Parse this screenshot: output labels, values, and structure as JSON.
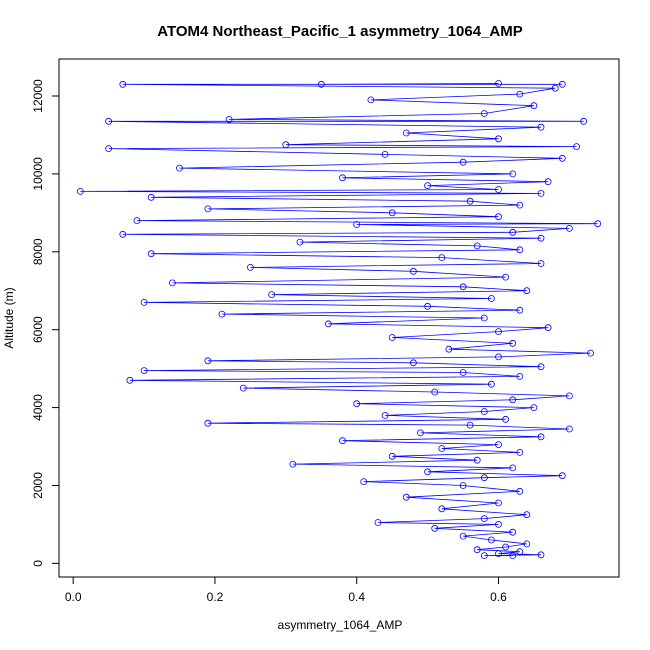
{
  "chart_data": {
    "type": "scatter",
    "title": "ATOM4 Northeast_Pacific_1 asymmetry_1064_AMP",
    "xlabel": "asymmetry_1064_AMP",
    "ylabel": "Altitude (m)",
    "xlim": [
      -0.02,
      0.77
    ],
    "ylim": [
      -350,
      12950
    ],
    "xticks": [
      "0.0",
      "0.2",
      "0.4",
      "0.6"
    ],
    "yticks": [
      "0",
      "2000",
      "4000",
      "6000",
      "8000",
      "10000",
      "12000"
    ],
    "grid": false,
    "style": "points connected by lines (open circles)",
    "color": "#0000ff",
    "series": [
      {
        "values_note": "",
        "points": [
          [
            0.62,
            200
          ],
          [
            0.58,
            200
          ],
          [
            0.66,
            220
          ],
          [
            0.6,
            250
          ],
          [
            0.63,
            300
          ],
          [
            0.57,
            350
          ],
          [
            0.61,
            420
          ],
          [
            0.64,
            500
          ],
          [
            0.59,
            600
          ],
          [
            0.55,
            700
          ],
          [
            0.62,
            800
          ],
          [
            0.51,
            900
          ],
          [
            0.6,
            1000
          ],
          [
            0.43,
            1050
          ],
          [
            0.58,
            1150
          ],
          [
            0.64,
            1250
          ],
          [
            0.52,
            1400
          ],
          [
            0.6,
            1550
          ],
          [
            0.47,
            1700
          ],
          [
            0.63,
            1850
          ],
          [
            0.55,
            2000
          ],
          [
            0.41,
            2100
          ],
          [
            0.58,
            2200
          ],
          [
            0.69,
            2250
          ],
          [
            0.5,
            2350
          ],
          [
            0.62,
            2450
          ],
          [
            0.31,
            2550
          ],
          [
            0.57,
            2650
          ],
          [
            0.45,
            2750
          ],
          [
            0.63,
            2850
          ],
          [
            0.52,
            2950
          ],
          [
            0.6,
            3050
          ],
          [
            0.38,
            3150
          ],
          [
            0.66,
            3250
          ],
          [
            0.49,
            3350
          ],
          [
            0.7,
            3450
          ],
          [
            0.56,
            3550
          ],
          [
            0.19,
            3600
          ],
          [
            0.61,
            3700
          ],
          [
            0.44,
            3800
          ],
          [
            0.58,
            3900
          ],
          [
            0.65,
            4000
          ],
          [
            0.4,
            4100
          ],
          [
            0.62,
            4200
          ],
          [
            0.7,
            4300
          ],
          [
            0.51,
            4400
          ],
          [
            0.24,
            4500
          ],
          [
            0.59,
            4600
          ],
          [
            0.08,
            4700
          ],
          [
            0.63,
            4800
          ],
          [
            0.55,
            4900
          ],
          [
            0.1,
            4950
          ],
          [
            0.66,
            5050
          ],
          [
            0.48,
            5150
          ],
          [
            0.19,
            5200
          ],
          [
            0.6,
            5300
          ],
          [
            0.73,
            5400
          ],
          [
            0.53,
            5500
          ],
          [
            0.62,
            5650
          ],
          [
            0.45,
            5800
          ],
          [
            0.6,
            5950
          ],
          [
            0.67,
            6050
          ],
          [
            0.36,
            6150
          ],
          [
            0.58,
            6300
          ],
          [
            0.21,
            6400
          ],
          [
            0.63,
            6500
          ],
          [
            0.5,
            6600
          ],
          [
            0.1,
            6700
          ],
          [
            0.59,
            6800
          ],
          [
            0.28,
            6900
          ],
          [
            0.64,
            7000
          ],
          [
            0.55,
            7100
          ],
          [
            0.14,
            7200
          ],
          [
            0.61,
            7350
          ],
          [
            0.48,
            7500
          ],
          [
            0.25,
            7600
          ],
          [
            0.66,
            7700
          ],
          [
            0.52,
            7850
          ],
          [
            0.11,
            7950
          ],
          [
            0.63,
            8050
          ],
          [
            0.57,
            8150
          ],
          [
            0.32,
            8250
          ],
          [
            0.66,
            8350
          ],
          [
            0.07,
            8450
          ],
          [
            0.62,
            8500
          ],
          [
            0.7,
            8600
          ],
          [
            0.4,
            8700
          ],
          [
            0.74,
            8720
          ],
          [
            0.09,
            8800
          ],
          [
            0.6,
            8900
          ],
          [
            0.45,
            9000
          ],
          [
            0.19,
            9100
          ],
          [
            0.63,
            9200
          ],
          [
            0.56,
            9300
          ],
          [
            0.11,
            9400
          ],
          [
            0.66,
            9500
          ],
          [
            0.01,
            9550
          ],
          [
            0.6,
            9600
          ],
          [
            0.5,
            9700
          ],
          [
            0.67,
            9800
          ],
          [
            0.38,
            9900
          ],
          [
            0.62,
            10000
          ],
          [
            0.15,
            10150
          ],
          [
            0.55,
            10300
          ],
          [
            0.69,
            10400
          ],
          [
            0.44,
            10500
          ],
          [
            0.05,
            10650
          ],
          [
            0.71,
            10700
          ],
          [
            0.3,
            10750
          ],
          [
            0.6,
            10900
          ],
          [
            0.47,
            11050
          ],
          [
            0.66,
            11200
          ],
          [
            0.05,
            11350
          ],
          [
            0.72,
            11350
          ],
          [
            0.22,
            11400
          ],
          [
            0.58,
            11550
          ],
          [
            0.65,
            11750
          ],
          [
            0.42,
            11900
          ],
          [
            0.63,
            12050
          ],
          [
            0.68,
            12200
          ],
          [
            0.07,
            12300
          ],
          [
            0.69,
            12300
          ],
          [
            0.35,
            12300
          ],
          [
            0.6,
            12320
          ]
        ]
      }
    ]
  }
}
